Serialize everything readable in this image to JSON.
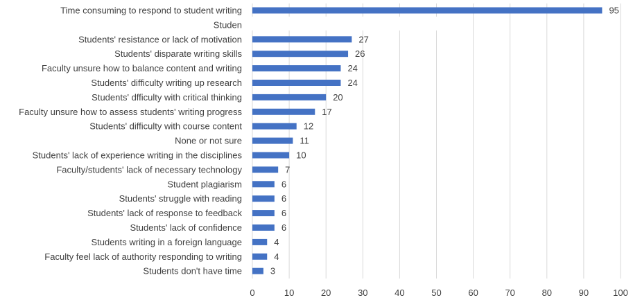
{
  "chart_data": {
    "type": "bar",
    "orientation": "horizontal",
    "title": "",
    "xlabel": "",
    "ylabel": "",
    "xlim": [
      0,
      100
    ],
    "x_ticks": [
      0,
      10,
      20,
      30,
      40,
      50,
      60,
      70,
      80,
      90,
      100
    ],
    "grid": true,
    "bar_color": "#4472C4",
    "categories": [
      "Time consuming to respond to student writing",
      "Studen",
      "Students' resistance or lack of motivation",
      "Students' disparate writing skills",
      "Faculty unsure how to balance content and writing",
      "Students' difficulty writing up research",
      "Students' dfficulty with critical thinking",
      "Faculty unsure how to assess students' writing progress",
      "Students' difficulty with course content",
      "None or not sure",
      "Students' lack of experience writing in the disciplines",
      "Faculty/students' lack of necessary technology",
      "Student plagiarism",
      "Students' struggle with reading",
      "Students' lack of response to feedback",
      "Students' lack of confidence",
      "Students writing in a foreign language",
      "Faculty feel lack of authority responding to writing",
      "Students don't have time"
    ],
    "values": [
      95,
      null,
      27,
      26,
      24,
      24,
      20,
      17,
      12,
      11,
      10,
      7,
      6,
      6,
      6,
      6,
      4,
      4,
      3
    ]
  }
}
